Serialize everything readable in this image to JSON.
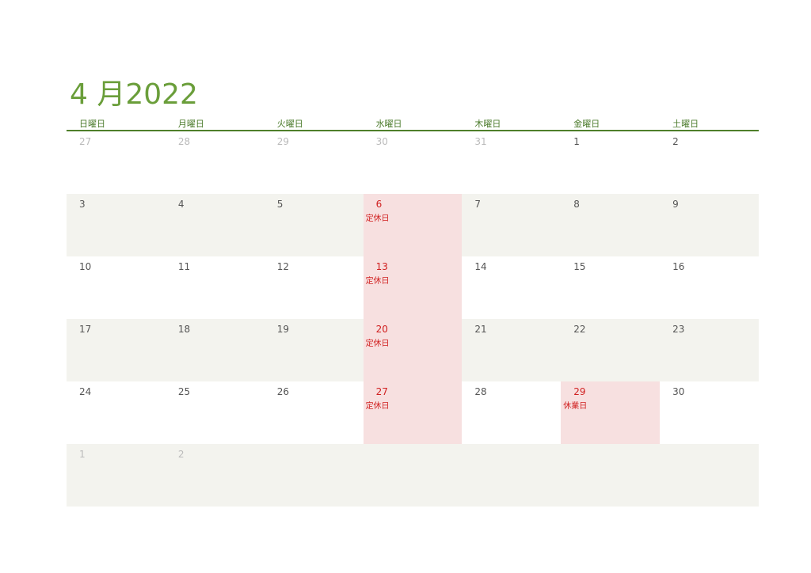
{
  "header": {
    "title": "4 月2022"
  },
  "weekdays": [
    "日曜日",
    "月曜日",
    "火曜日",
    "水曜日",
    "木曜日",
    "金曜日",
    "土曜日"
  ],
  "weeks": [
    [
      {
        "day": 27,
        "outside": true
      },
      {
        "day": 28,
        "outside": true
      },
      {
        "day": 29,
        "outside": true
      },
      {
        "day": 30,
        "outside": true
      },
      {
        "day": 31,
        "outside": true
      },
      {
        "day": 1
      },
      {
        "day": 2
      }
    ],
    [
      {
        "day": 3
      },
      {
        "day": 4
      },
      {
        "day": 5
      },
      {
        "day": 6,
        "note": "定休日"
      },
      {
        "day": 7
      },
      {
        "day": 8
      },
      {
        "day": 9
      }
    ],
    [
      {
        "day": 10
      },
      {
        "day": 11
      },
      {
        "day": 12
      },
      {
        "day": 13,
        "note": "定休日"
      },
      {
        "day": 14
      },
      {
        "day": 15
      },
      {
        "day": 16
      }
    ],
    [
      {
        "day": 17
      },
      {
        "day": 18
      },
      {
        "day": 19
      },
      {
        "day": 20,
        "note": "定休日"
      },
      {
        "day": 21
      },
      {
        "day": 22
      },
      {
        "day": 23
      }
    ],
    [
      {
        "day": 24
      },
      {
        "day": 25
      },
      {
        "day": 26
      },
      {
        "day": 27,
        "note": "定休日"
      },
      {
        "day": 28
      },
      {
        "day": 29,
        "note": "休業日"
      },
      {
        "day": 30
      }
    ],
    [
      {
        "day": 1,
        "outside": true
      },
      {
        "day": 2,
        "outside": true
      }
    ]
  ]
}
